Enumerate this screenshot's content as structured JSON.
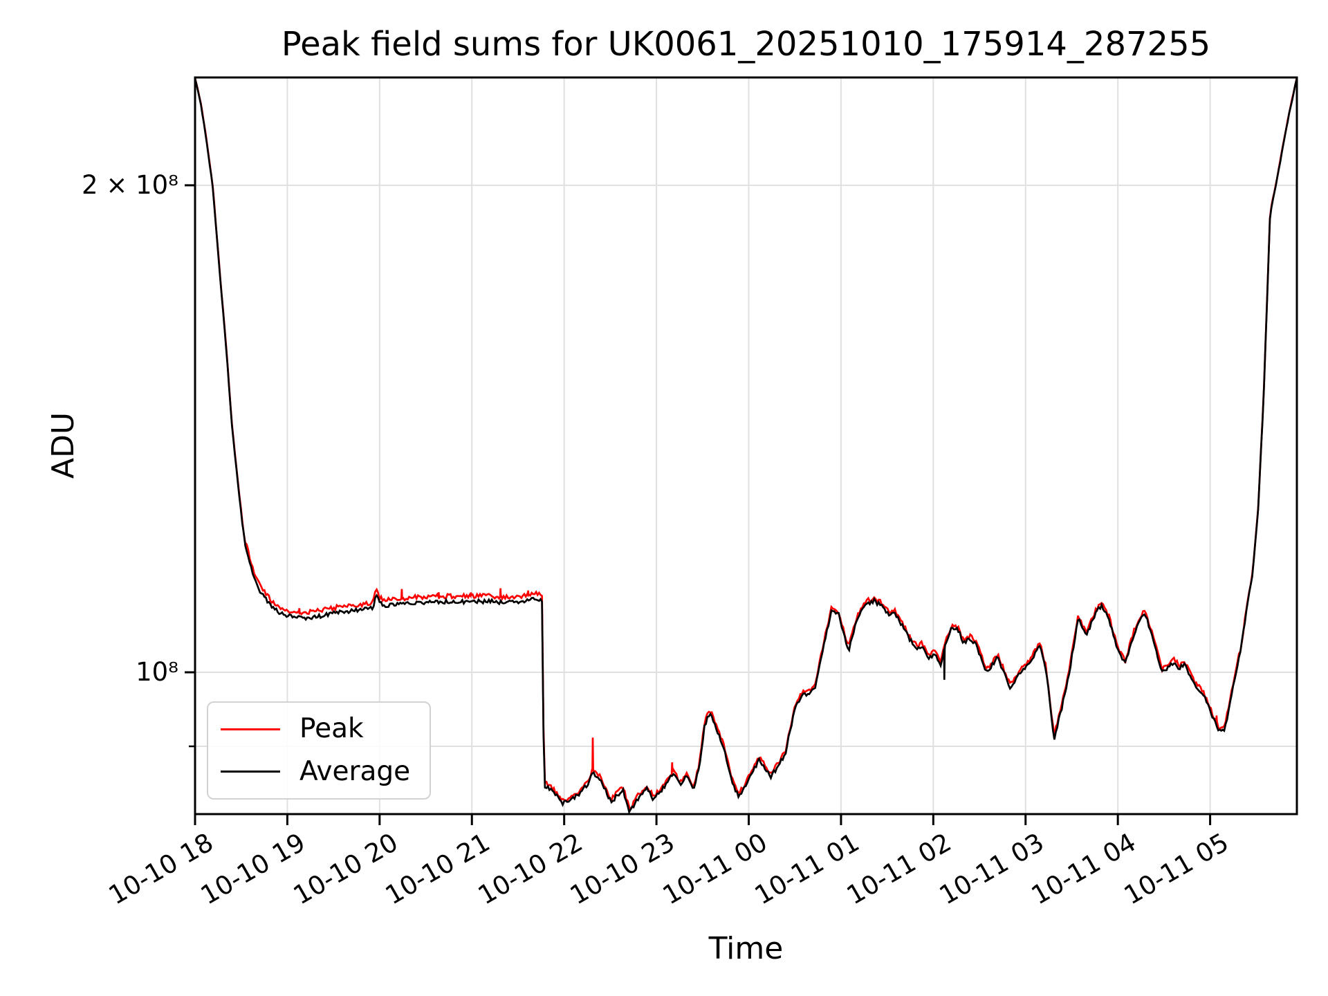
{
  "chart_data": {
    "type": "line",
    "title": "Peak field sums for UK0061_20251010_175914_287255",
    "xlabel": "Time",
    "ylabel": "ADU",
    "grid": true,
    "x_start_label": "2025-10-10 18:00",
    "xlim_hours": [
      0,
      11.94
    ],
    "ylim": [
      81700000,
      233000000
    ],
    "x_ticks": [
      "10-10 18",
      "10-10 19",
      "10-10 20",
      "10-10 21",
      "10-10 22",
      "10-10 23",
      "10-11 00",
      "10-11 01",
      "10-11 02",
      "10-11 03",
      "10-11 04",
      "10-11 05"
    ],
    "y_ticks": [
      {
        "label": "2 × 10⁸",
        "value": 200000000
      },
      {
        "label": "10⁸",
        "value": 100000000
      }
    ],
    "y_minor_gridlines": [
      90000000
    ],
    "grid_color": "#e0e0e0",
    "legend": {
      "position": "lower left",
      "entries": [
        "Peak",
        "Average"
      ]
    },
    "series": [
      {
        "name": "Peak",
        "color": "#ff0000",
        "note": "tracks Average multiplied by gap factor below",
        "gap_segments": [
          {
            "t_range": [
              0,
              0.55
            ],
            "factor": 1.0015
          },
          {
            "t_range": [
              0.55,
              3.78
            ],
            "factor": 1.008
          },
          {
            "t_range": [
              3.78,
              11.32
            ],
            "factor": 1.0042
          },
          {
            "t_range": [
              11.32,
              11.94
            ],
            "factor": 1.0015
          }
        ],
        "spikes": [
          [
            1.13,
            1.014
          ],
          [
            2.24,
            1.022
          ],
          [
            2.64,
            1.014
          ],
          [
            2.99,
            1.013
          ],
          [
            3.31,
            1.02
          ],
          [
            3.61,
            1.014
          ],
          [
            4.31,
            1.051
          ],
          [
            5.17,
            1.018
          ],
          [
            11.07,
            1.014
          ]
        ]
      },
      {
        "name": "Average",
        "color": "#000000",
        "spikes": [
          [
            8.12,
            0.957
          ]
        ],
        "points": [
          [
            0.0,
            233000000
          ],
          [
            0.06,
            225000000
          ],
          [
            0.12,
            214000000
          ],
          [
            0.19,
            200000000
          ],
          [
            0.27,
            176000000
          ],
          [
            0.34,
            158000000
          ],
          [
            0.4,
            142000000
          ],
          [
            0.47,
            130000000
          ],
          [
            0.54,
            120000000
          ],
          [
            0.63,
            114800000
          ],
          [
            0.72,
            111800000
          ],
          [
            0.82,
            110000000
          ],
          [
            0.92,
            108800000
          ],
          [
            1.02,
            108300000
          ],
          [
            1.15,
            108000000
          ],
          [
            1.3,
            108200000
          ],
          [
            1.45,
            108600000
          ],
          [
            1.6,
            109000000
          ],
          [
            1.75,
            109200000
          ],
          [
            1.88,
            109400000
          ],
          [
            1.93,
            109600000
          ],
          [
            1.96,
            111800000
          ],
          [
            2.0,
            110400000
          ],
          [
            2.04,
            109900000
          ],
          [
            2.2,
            110100000
          ],
          [
            2.4,
            110400000
          ],
          [
            2.6,
            110500000
          ],
          [
            2.8,
            110600000
          ],
          [
            3.0,
            110600000
          ],
          [
            3.2,
            110600000
          ],
          [
            3.4,
            110400000
          ],
          [
            3.55,
            110600000
          ],
          [
            3.68,
            111000000
          ],
          [
            3.74,
            110800000
          ],
          [
            3.765,
            110600000
          ],
          [
            3.78,
            85200000
          ],
          [
            3.9,
            84200000
          ],
          [
            3.97,
            83000000
          ],
          [
            4.05,
            83300000
          ],
          [
            4.15,
            84000000
          ],
          [
            4.25,
            85200000
          ],
          [
            4.31,
            86700000
          ],
          [
            4.38,
            86000000
          ],
          [
            4.45,
            84500000
          ],
          [
            4.51,
            83100000
          ],
          [
            4.58,
            84000000
          ],
          [
            4.64,
            84500000
          ],
          [
            4.71,
            81900000
          ],
          [
            4.78,
            83300000
          ],
          [
            4.85,
            84200000
          ],
          [
            4.9,
            84700000
          ],
          [
            4.97,
            83400000
          ],
          [
            5.05,
            84500000
          ],
          [
            5.12,
            85500000
          ],
          [
            5.18,
            86600000
          ],
          [
            5.26,
            85100000
          ],
          [
            5.32,
            86300000
          ],
          [
            5.4,
            84800000
          ],
          [
            5.46,
            87000000
          ],
          [
            5.52,
            92500000
          ],
          [
            5.56,
            94200000
          ],
          [
            5.6,
            93800000
          ],
          [
            5.67,
            91600000
          ],
          [
            5.74,
            89500000
          ],
          [
            5.81,
            85800000
          ],
          [
            5.89,
            83700000
          ],
          [
            5.97,
            85200000
          ],
          [
            6.05,
            87000000
          ],
          [
            6.12,
            88400000
          ],
          [
            6.18,
            87000000
          ],
          [
            6.24,
            86200000
          ],
          [
            6.32,
            87500000
          ],
          [
            6.4,
            89200000
          ],
          [
            6.5,
            95000000
          ],
          [
            6.57,
            96800000
          ],
          [
            6.65,
            97000000
          ],
          [
            6.72,
            98000000
          ],
          [
            6.82,
            104500000
          ],
          [
            6.9,
            109200000
          ],
          [
            6.97,
            108800000
          ],
          [
            7.08,
            103100000
          ],
          [
            7.18,
            108200000
          ],
          [
            7.28,
            110300000
          ],
          [
            7.36,
            110700000
          ],
          [
            7.45,
            109800000
          ],
          [
            7.52,
            108500000
          ],
          [
            7.58,
            108900000
          ],
          [
            7.68,
            106400000
          ],
          [
            7.76,
            104500000
          ],
          [
            7.82,
            103400000
          ],
          [
            7.88,
            103900000
          ],
          [
            7.95,
            101900000
          ],
          [
            8.02,
            102800000
          ],
          [
            8.08,
            101200000
          ],
          [
            8.14,
            104500000
          ],
          [
            8.2,
            106500000
          ],
          [
            8.27,
            106200000
          ],
          [
            8.33,
            104200000
          ],
          [
            8.4,
            104900000
          ],
          [
            8.47,
            103800000
          ],
          [
            8.58,
            100000000
          ],
          [
            8.7,
            102100000
          ],
          [
            8.83,
            97900000
          ],
          [
            8.95,
            100000000
          ],
          [
            9.05,
            101300000
          ],
          [
            9.15,
            104000000
          ],
          [
            9.22,
            100500000
          ],
          [
            9.31,
            91000000
          ],
          [
            9.4,
            95500000
          ],
          [
            9.48,
            100500000
          ],
          [
            9.57,
            107900000
          ],
          [
            9.66,
            105300000
          ],
          [
            9.75,
            108500000
          ],
          [
            9.82,
            110000000
          ],
          [
            9.9,
            108000000
          ],
          [
            9.99,
            103500000
          ],
          [
            10.08,
            101200000
          ],
          [
            10.17,
            105500000
          ],
          [
            10.29,
            108900000
          ],
          [
            10.38,
            104900000
          ],
          [
            10.48,
            100000000
          ],
          [
            10.61,
            101400000
          ],
          [
            10.67,
            100500000
          ],
          [
            10.72,
            101200000
          ],
          [
            10.83,
            98400000
          ],
          [
            10.94,
            96500000
          ],
          [
            11.02,
            94000000
          ],
          [
            11.1,
            92000000
          ],
          [
            11.16,
            92200000
          ],
          [
            11.22,
            96000000
          ],
          [
            11.28,
            100000000
          ],
          [
            11.34,
            104000000
          ],
          [
            11.4,
            110000000
          ],
          [
            11.46,
            115000000
          ],
          [
            11.52,
            126000000
          ],
          [
            11.58,
            148000000
          ],
          [
            11.65,
            192000000
          ],
          [
            11.72,
            201000000
          ],
          [
            11.78,
            210000000
          ],
          [
            11.86,
            222000000
          ],
          [
            11.94,
            233000000
          ]
        ]
      }
    ]
  }
}
